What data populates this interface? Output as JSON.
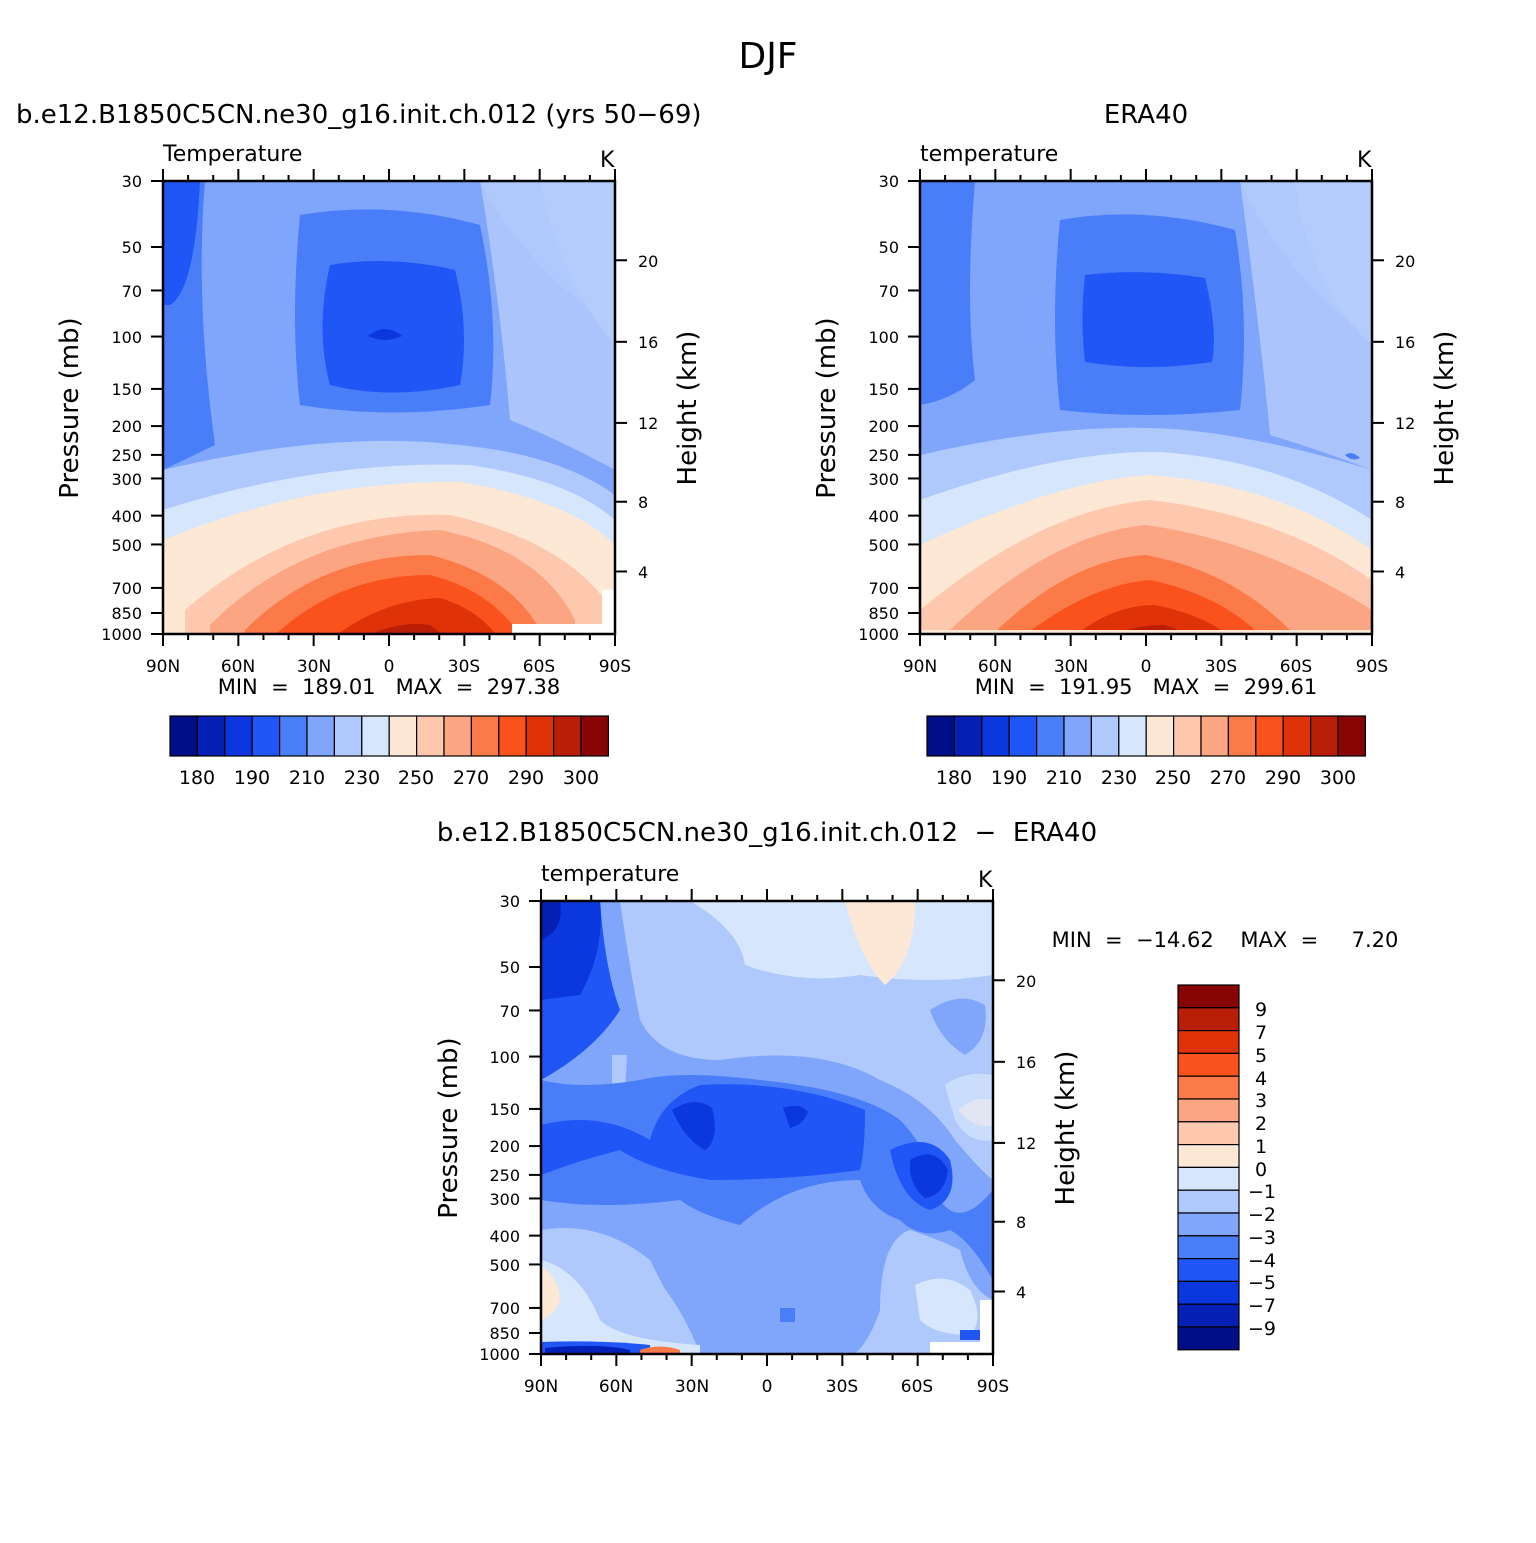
{
  "page": {
    "title": "DJF"
  },
  "colors": {
    "temp_palette": [
      "#000f88",
      "#0520b5",
      "#0b37de",
      "#1f56f5",
      "#4a7df8",
      "#7fa6fb",
      "#b0c9fc",
      "#d6e6fd",
      "#fde8d6",
      "#fdc8ae",
      "#fca582",
      "#fb7a48",
      "#fa521d",
      "#e03208",
      "#b81f06",
      "#870404"
    ],
    "diff_palette": [
      "#000f88",
      "#0520b5",
      "#0b37de",
      "#1f56f5",
      "#4a7df8",
      "#7fa6fb",
      "#b0c9fc",
      "#d6e6fd",
      "#fde8d6",
      "#fdc8ae",
      "#fca582",
      "#fb7a48",
      "#fa521d",
      "#e03208",
      "#b81f06",
      "#870404"
    ]
  },
  "chart_data": [
    {
      "type": "heatmap",
      "panel_title": "b.e12.B1850C5CN.ne30_g16.init.ch.012 (yrs 50−69)",
      "variable": "Temperature",
      "units": "K",
      "ylabel": "Pressure (mb)",
      "ylabel_right": "Height (km)",
      "x_ticks": [
        "90N",
        "60N",
        "30N",
        "0",
        "30S",
        "60S",
        "90S"
      ],
      "y_ticks": [
        "30",
        "50",
        "70",
        "100",
        "150",
        "200",
        "250",
        "300",
        "400",
        "500",
        "700",
        "850",
        "1000"
      ],
      "y_ticks_right": [
        "20",
        "16",
        "12",
        "8",
        "4"
      ],
      "min_label": "MIN  =  189.01   MAX  =  297.38",
      "colorbar_labels": [
        "180",
        "190",
        "210",
        "230",
        "250",
        "270",
        "290",
        "300"
      ],
      "min": 189.01,
      "max": 297.38
    },
    {
      "type": "heatmap",
      "panel_title": "ERA40",
      "variable": "temperature",
      "units": "K",
      "ylabel": "Pressure (mb)",
      "ylabel_right": "Height (km)",
      "x_ticks": [
        "90N",
        "60N",
        "30N",
        "0",
        "30S",
        "60S",
        "90S"
      ],
      "y_ticks": [
        "30",
        "50",
        "70",
        "100",
        "150",
        "200",
        "250",
        "300",
        "400",
        "500",
        "700",
        "850",
        "1000"
      ],
      "y_ticks_right": [
        "20",
        "16",
        "12",
        "8",
        "4"
      ],
      "min_label": "MIN  =  191.95   MAX  =  299.61",
      "colorbar_labels": [
        "180",
        "190",
        "210",
        "230",
        "250",
        "270",
        "290",
        "300"
      ],
      "min": 191.95,
      "max": 299.61
    },
    {
      "type": "heatmap",
      "panel_title": "b.e12.B1850C5CN.ne30_g16.init.ch.012  −  ERA40",
      "variable": "temperature",
      "units": "K",
      "ylabel": "Pressure (mb)",
      "ylabel_right": "Height (km)",
      "x_ticks": [
        "90N",
        "60N",
        "30N",
        "0",
        "30S",
        "60S",
        "90S"
      ],
      "y_ticks": [
        "30",
        "50",
        "70",
        "100",
        "150",
        "200",
        "250",
        "300",
        "400",
        "500",
        "700",
        "850",
        "1000"
      ],
      "y_ticks_right": [
        "20",
        "16",
        "12",
        "8",
        "4"
      ],
      "min_label": "MIN  =  −14.62    MAX  =     7.20",
      "colorbar_labels": [
        "9",
        "7",
        "5",
        "4",
        "3",
        "2",
        "1",
        "0",
        "−1",
        "−2",
        "−3",
        "−4",
        "−5",
        "−7",
        "−9"
      ],
      "min": -14.62,
      "max": 7.2
    }
  ]
}
